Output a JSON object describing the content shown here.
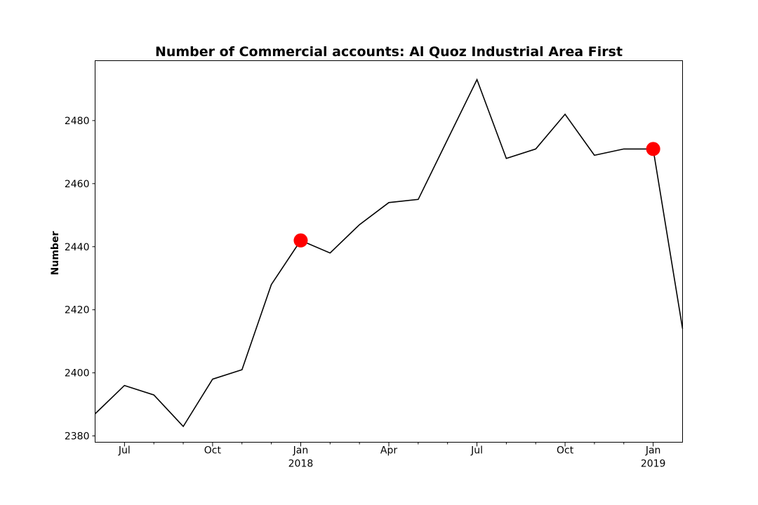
{
  "chart_data": {
    "type": "line",
    "title": "Number of Commercial accounts: Al Quoz Industrial Area First",
    "xlabel": "",
    "ylabel": "Number",
    "ylim": [
      2378,
      2499
    ],
    "xlim": [
      "2017-06",
      "2019-02"
    ],
    "yticks": [
      2380,
      2400,
      2420,
      2440,
      2460,
      2480
    ],
    "xticks": [
      {
        "x": "2017-07",
        "label": "Jul",
        "sublabel": ""
      },
      {
        "x": "2017-10",
        "label": "Oct",
        "sublabel": ""
      },
      {
        "x": "2018-01",
        "label": "Jan",
        "sublabel": "2018"
      },
      {
        "x": "2018-04",
        "label": "Apr",
        "sublabel": ""
      },
      {
        "x": "2018-07",
        "label": "Jul",
        "sublabel": ""
      },
      {
        "x": "2018-10",
        "label": "Oct",
        "sublabel": ""
      },
      {
        "x": "2019-01",
        "label": "Jan",
        "sublabel": "2019"
      }
    ],
    "minor_xticks": [
      "2017-08",
      "2017-09",
      "2017-11",
      "2017-12",
      "2018-02",
      "2018-03",
      "2018-05",
      "2018-06",
      "2018-08",
      "2018-09",
      "2018-11",
      "2018-12"
    ],
    "series": [
      {
        "x": [
          "2017-06",
          "2017-07",
          "2017-08",
          "2017-09",
          "2017-10",
          "2017-11",
          "2017-12",
          "2018-01",
          "2018-02",
          "2018-03",
          "2018-04",
          "2018-05",
          "2018-06",
          "2018-07",
          "2018-08",
          "2018-09",
          "2018-10",
          "2018-11",
          "2018-12",
          "2019-01",
          "2019-02"
        ],
        "values": [
          2387,
          2396,
          2393,
          2383,
          2398,
          2401,
          2428,
          2442,
          2438,
          2447,
          2454,
          2455,
          2474,
          2493,
          2468,
          2471,
          2482,
          2469,
          2471,
          2471,
          2414
        ],
        "color": "#000000"
      }
    ],
    "highlighted_points": [
      {
        "x": "2018-01",
        "y": 2442,
        "color": "#ff0000"
      },
      {
        "x": "2019-01",
        "y": 2471,
        "color": "#ff0000"
      }
    ],
    "grid": false,
    "legend": "none"
  }
}
